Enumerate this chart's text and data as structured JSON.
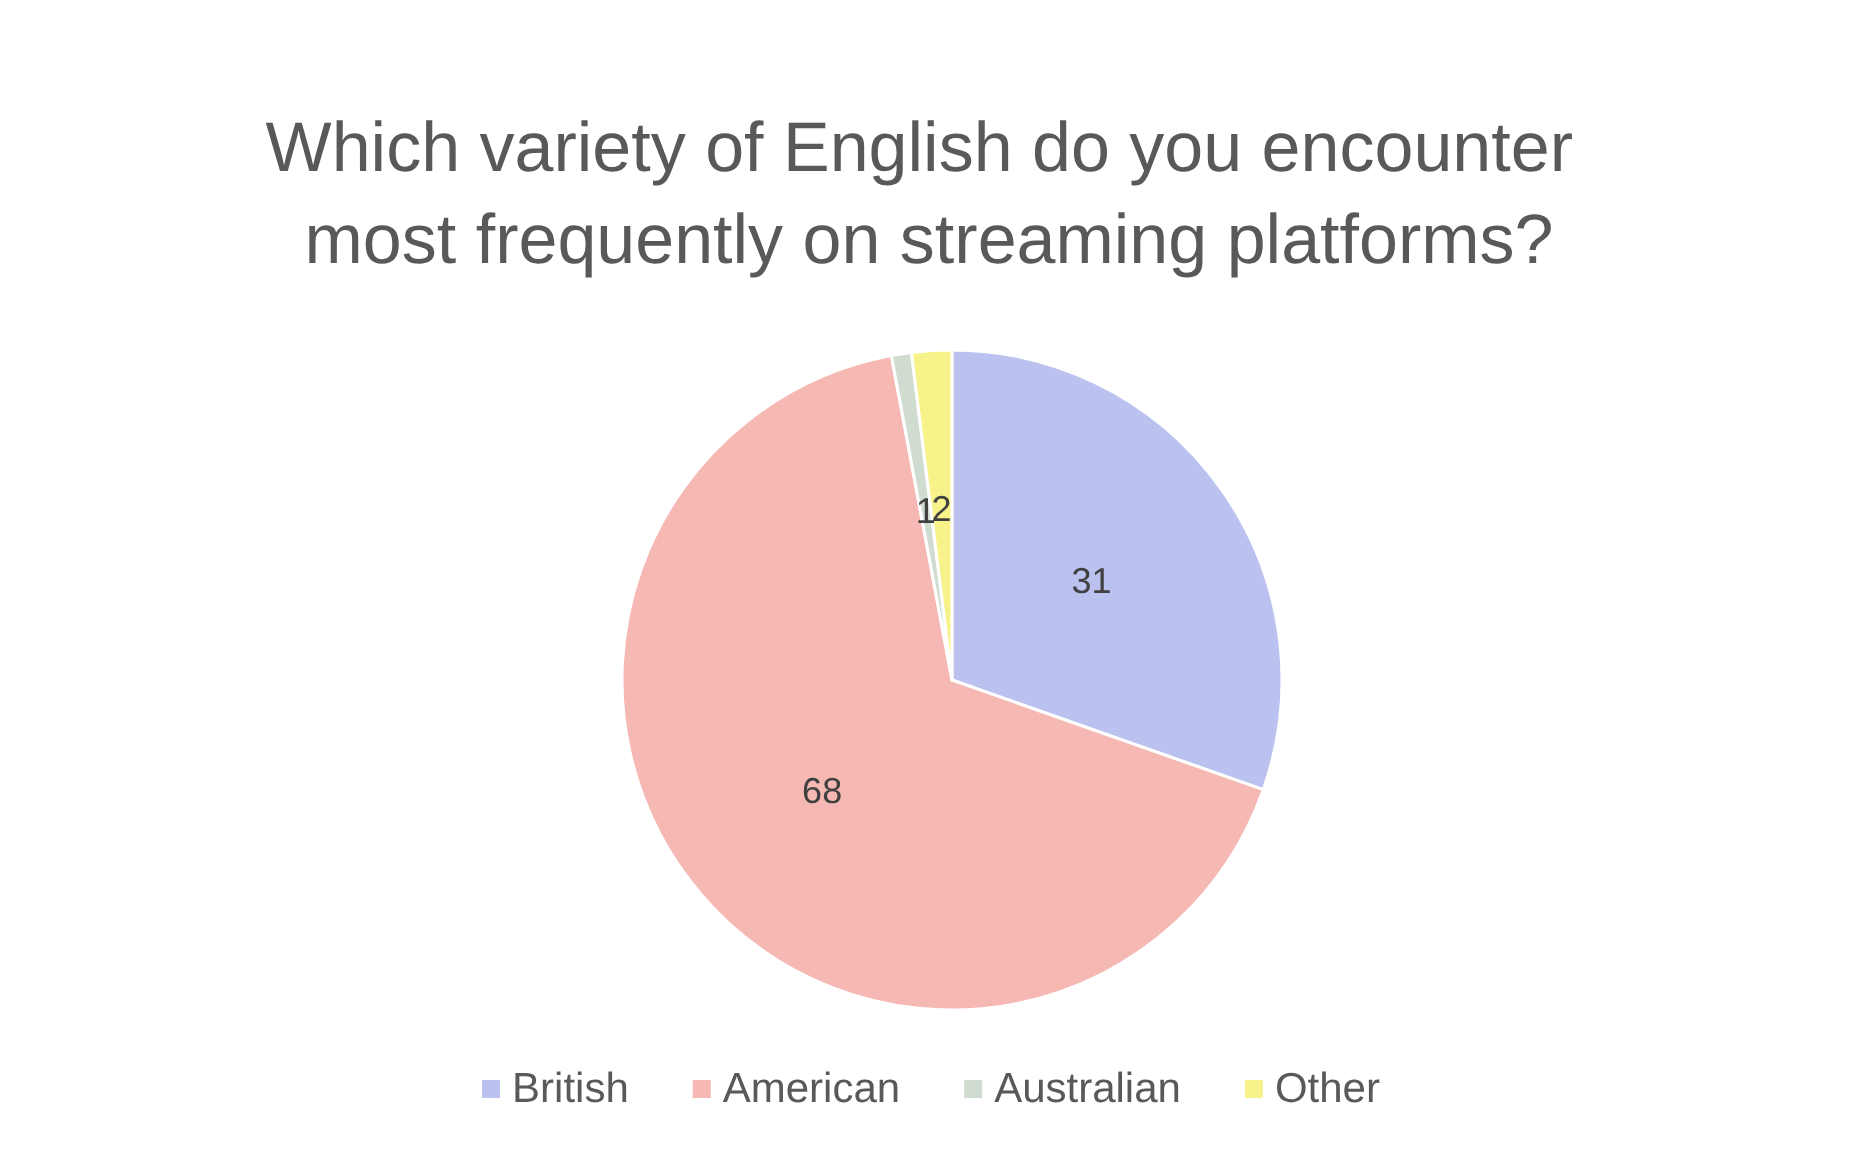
{
  "chart_data": {
    "type": "pie",
    "title": "Which variety of English do you encounter most frequently on streaming platforms?",
    "categories": [
      "British",
      "American",
      "Australian",
      "Other"
    ],
    "values": [
      31,
      68,
      1,
      2
    ],
    "colors": [
      "#bbc2ef",
      "#f6b8b2",
      "#cfdccf",
      "#f8f28a"
    ],
    "data_labels": true,
    "legend": "bottom"
  }
}
